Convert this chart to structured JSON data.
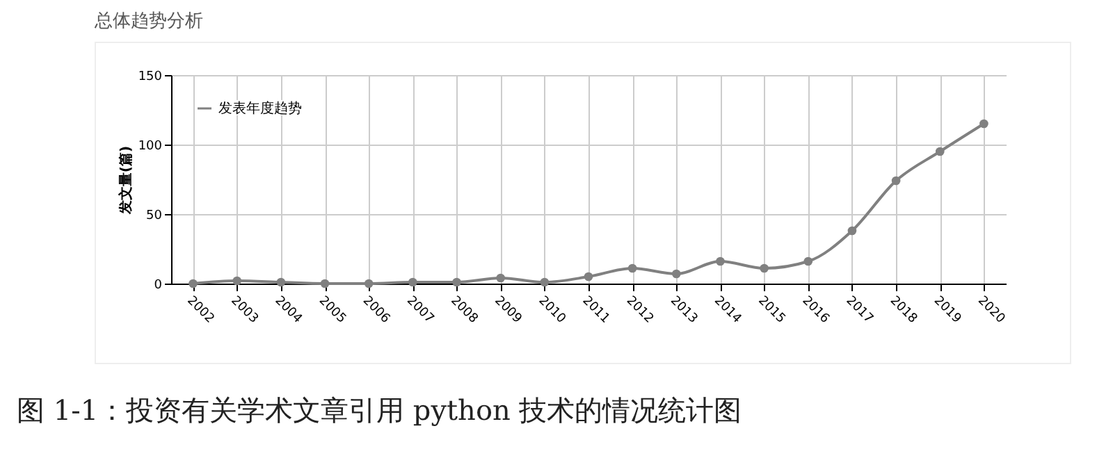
{
  "chart_data": {
    "type": "line",
    "title": "总体趋势分析",
    "ylabel": "发文量(篇)",
    "categories": [
      "2002",
      "2003",
      "2004",
      "2005",
      "2006",
      "2007",
      "2008",
      "2009",
      "2010",
      "2011",
      "2012",
      "2013",
      "2014",
      "2015",
      "2016",
      "2017",
      "2018",
      "2019",
      "2020"
    ],
    "series": [
      {
        "name": "发表年度趋势",
        "color": "#808080",
        "values": [
          0,
          2,
          1,
          0,
          0,
          1,
          1,
          4,
          1,
          5,
          11,
          7,
          16,
          11,
          16,
          38,
          74,
          95,
          115
        ]
      }
    ],
    "ylim": [
      0,
      150
    ],
    "yticks": [
      0,
      50,
      100,
      150
    ],
    "grid": true,
    "legend": "top left",
    "marker": "circle",
    "line_style": "solid",
    "annotations": [
      "图 1-1：投资有关学术文章引用 python 技术的情况统计图"
    ]
  }
}
